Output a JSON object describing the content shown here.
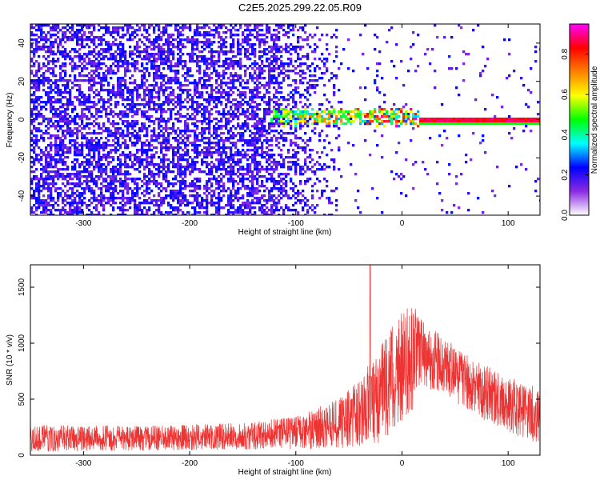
{
  "title": "C2E5.2025.299.22.05.R09",
  "chart_data": [
    {
      "type": "heatmap",
      "name": "spectrogram",
      "xlabel": "Height of straight line (km)",
      "ylabel": "Frequency (Hz)",
      "xlim": [
        -350,
        130
      ],
      "ylim": [
        -50,
        50
      ],
      "xticks": [
        -300,
        -200,
        -100,
        0,
        100
      ],
      "yticks": [
        -40,
        -20,
        0,
        20,
        40
      ],
      "colorbar": {
        "label": "Normalized spectral amplitude",
        "range": [
          0.0,
          0.95
        ],
        "ticks": [
          "0.0",
          "0.2",
          "0.4",
          "0.6",
          "0.8"
        ],
        "colors": [
          "#ffffff",
          "#8a2be2",
          "#0000ff",
          "#00ffff",
          "#00ff00",
          "#ffff00",
          "#ff8000",
          "#ff0000",
          "#ff00ff"
        ]
      },
      "bands": [
        {
          "x_from": -350,
          "x_to": -140,
          "description": "broadband noise",
          "amplitude": 0.2
        },
        {
          "x_from": -140,
          "x_to": -60,
          "description": "fading noise",
          "amplitude": 0.12
        },
        {
          "x_from": -125,
          "x_to": 15,
          "freq_center": 2,
          "freq_spread": 4,
          "amplitude": 0.4
        },
        {
          "x_from": 15,
          "x_to": 130,
          "freq_center": 0,
          "freq_spread": 1,
          "amplitude": 0.9
        }
      ]
    },
    {
      "type": "line",
      "name": "snr",
      "xlabel": "Height of straight line (km)",
      "ylabel": "SNR (10 * v/v)",
      "xlim": [
        -350,
        130
      ],
      "ylim": [
        0,
        1700
      ],
      "xticks": [
        -300,
        -200,
        -100,
        0,
        100
      ],
      "yticks": [
        0,
        500,
        1000,
        1500
      ],
      "color": "#ee3333",
      "envelope": [
        {
          "x": -350,
          "base": 150,
          "spread": 120
        },
        {
          "x": -250,
          "base": 150,
          "spread": 110
        },
        {
          "x": -150,
          "base": 170,
          "spread": 120
        },
        {
          "x": -100,
          "base": 200,
          "spread": 150
        },
        {
          "x": -60,
          "base": 280,
          "spread": 220
        },
        {
          "x": -40,
          "base": 380,
          "spread": 300
        },
        {
          "x": -20,
          "base": 560,
          "spread": 450
        },
        {
          "x": 0,
          "base": 800,
          "spread": 500
        },
        {
          "x": 10,
          "base": 900,
          "spread": 500
        },
        {
          "x": 20,
          "base": 900,
          "spread": 300
        },
        {
          "x": 40,
          "base": 800,
          "spread": 250
        },
        {
          "x": 60,
          "base": 650,
          "spread": 250
        },
        {
          "x": 80,
          "base": 550,
          "spread": 250
        },
        {
          "x": 100,
          "base": 450,
          "spread": 250
        },
        {
          "x": 130,
          "base": 350,
          "spread": 250
        }
      ],
      "peak": {
        "x": -30,
        "y": 1700
      }
    }
  ]
}
